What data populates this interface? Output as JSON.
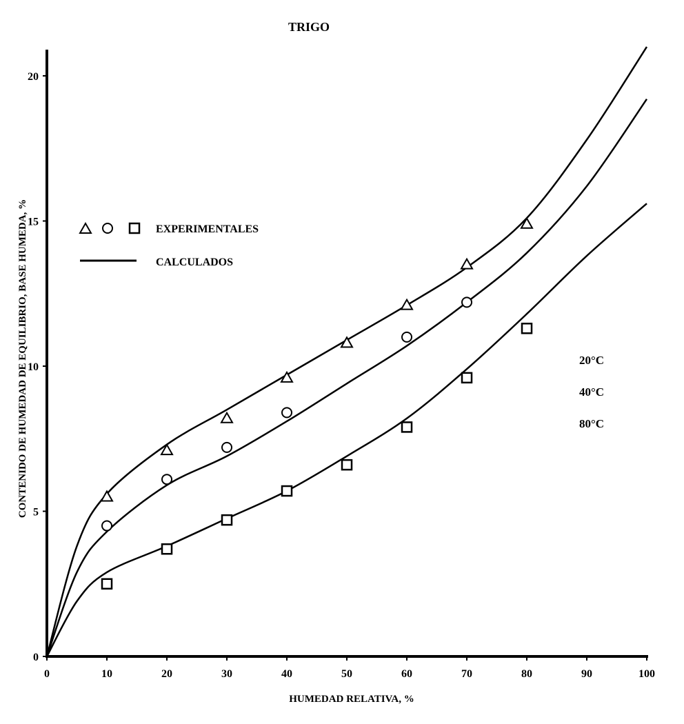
{
  "chart_data": {
    "type": "scatter",
    "title": "TRIGO",
    "xlabel": "HUMEDAD RELATIVA, %",
    "ylabel": "CONTENIDO DE HUMEDAD DE EQUILIBRIO, BASE HUMEDA, %",
    "xlim": [
      0,
      100
    ],
    "ylim": [
      0,
      20
    ],
    "x_ticks": [
      "0",
      "10",
      "20",
      "30",
      "40",
      "50",
      "60",
      "70",
      "80",
      "90",
      "100"
    ],
    "y_ticks": [
      "0",
      "5",
      "10",
      "15",
      "20"
    ],
    "grid": false,
    "legend": {
      "placement": "upper-left",
      "experimental_label": "EXPERIMENTALES",
      "calculated_label": "CALCULADOS"
    },
    "temperature_labels": [
      "20°C",
      "40°C",
      "80°C"
    ],
    "series": [
      {
        "name": "20°C",
        "marker": "triangle",
        "experimental": {
          "x": [
            10,
            20,
            30,
            40,
            50,
            60,
            70,
            80
          ],
          "y": [
            5.5,
            7.1,
            8.2,
            9.6,
            10.8,
            12.1,
            13.5,
            14.9
          ]
        },
        "calculated": {
          "x": [
            0,
            5,
            10,
            20,
            30,
            40,
            50,
            60,
            70,
            80,
            90,
            100
          ],
          "y": [
            0,
            3.8,
            5.6,
            7.3,
            8.5,
            9.7,
            10.9,
            12.1,
            13.4,
            15.1,
            17.8,
            21.0
          ]
        }
      },
      {
        "name": "40°C",
        "marker": "circle",
        "experimental": {
          "x": [
            10,
            20,
            30,
            40,
            60,
            70
          ],
          "y": [
            4.5,
            6.1,
            7.2,
            8.4,
            11.0,
            12.2
          ]
        },
        "calculated": {
          "x": [
            0,
            5,
            10,
            20,
            30,
            40,
            50,
            60,
            70,
            80,
            90,
            100
          ],
          "y": [
            0,
            2.9,
            4.3,
            5.9,
            6.9,
            8.1,
            9.4,
            10.7,
            12.2,
            13.9,
            16.2,
            19.2
          ]
        }
      },
      {
        "name": "80°C",
        "marker": "square",
        "experimental": {
          "x": [
            10,
            20,
            30,
            40,
            50,
            60,
            70,
            80
          ],
          "y": [
            2.5,
            3.7,
            4.7,
            5.7,
            6.6,
            7.9,
            9.6,
            11.3
          ]
        },
        "calculated": {
          "x": [
            0,
            5,
            10,
            20,
            30,
            40,
            50,
            60,
            70,
            80,
            90,
            100
          ],
          "y": [
            0,
            1.9,
            2.9,
            3.8,
            4.75,
            5.7,
            6.9,
            8.2,
            9.9,
            11.8,
            13.8,
            15.6
          ]
        }
      }
    ]
  }
}
